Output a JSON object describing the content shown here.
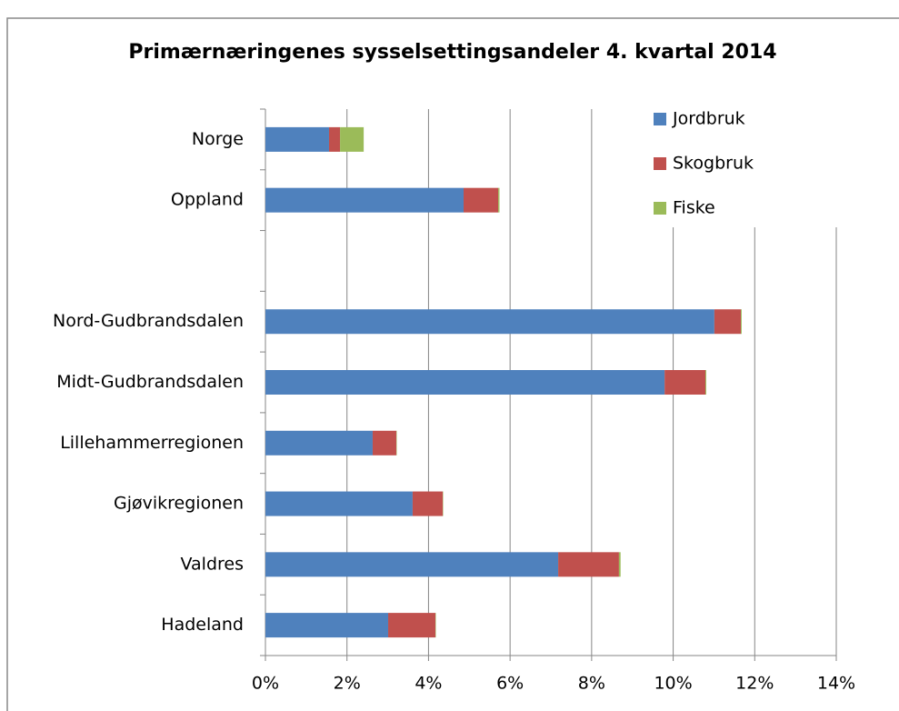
{
  "chart_data": {
    "type": "stacked-bar-horizontal",
    "title": "Primærnæringenes sysselsettingsandeler 4. kvartal 2014",
    "categories": [
      "Norge",
      "Oppland",
      null,
      "Nord-Gudbrandsdalen",
      "Midt-Gudbrandsdalen",
      "Lillehammerregionen",
      "Gjøvikregionen",
      "Valdres",
      "Hadeland"
    ],
    "series": [
      {
        "name": "Jordbruk",
        "color": "#4f81bd",
        "values": [
          1.56,
          4.86,
          null,
          11.01,
          9.79,
          2.63,
          3.61,
          7.18,
          3.01
        ]
      },
      {
        "name": "Skogbruk",
        "color": "#c0504d",
        "values": [
          0.27,
          0.85,
          null,
          0.65,
          1.0,
          0.58,
          0.74,
          1.49,
          1.16
        ]
      },
      {
        "name": "Fiske",
        "color": "#9bbb59",
        "values": [
          0.58,
          0.03,
          null,
          0.02,
          0.02,
          0.01,
          0.01,
          0.04,
          0.01
        ]
      }
    ],
    "xlim": [
      0,
      14
    ],
    "xticks": [
      {
        "value": 0,
        "label": "0%"
      },
      {
        "value": 2,
        "label": "2%"
      },
      {
        "value": 4,
        "label": "4%"
      },
      {
        "value": 6,
        "label": "6%"
      },
      {
        "value": 8,
        "label": "8%"
      },
      {
        "value": 10,
        "label": "10%"
      },
      {
        "value": 12,
        "label": "12%"
      },
      {
        "value": 14,
        "label": "14%"
      }
    ],
    "grid": true,
    "legend": "top-right"
  }
}
